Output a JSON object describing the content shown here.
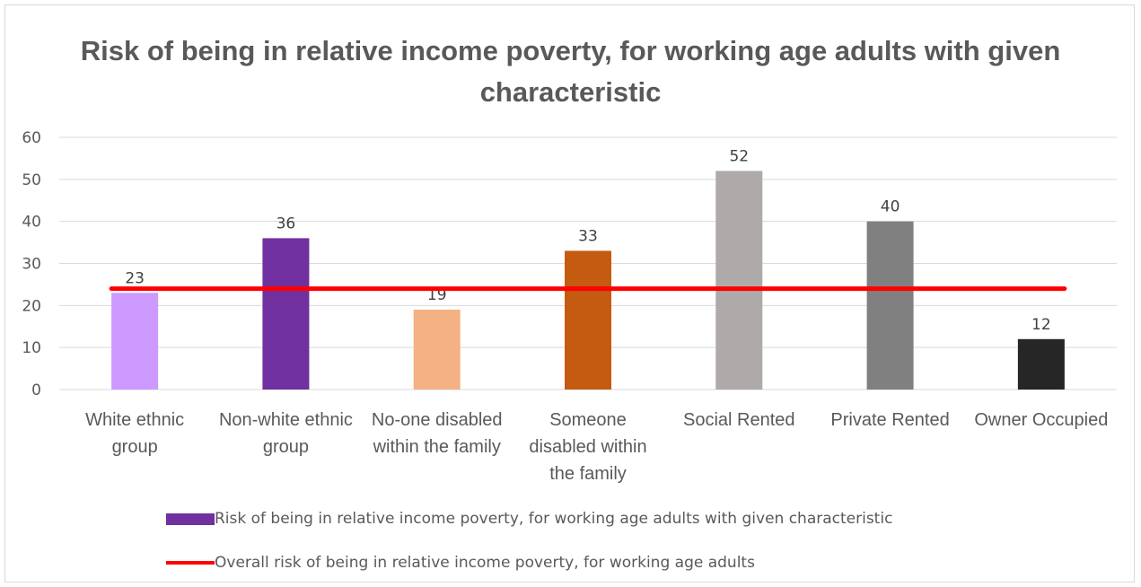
{
  "chart_data": {
    "type": "bar",
    "title": "Risk of being in relative income poverty, for working age adults with given characteristic",
    "categories": [
      [
        "White ethnic",
        "group"
      ],
      [
        "Non-white ethnic",
        "group"
      ],
      [
        "No-one disabled",
        "within the family"
      ],
      [
        "Someone",
        "disabled within",
        "the family"
      ],
      [
        "Social Rented"
      ],
      [
        "Private Rented"
      ],
      [
        "Owner Occupied"
      ]
    ],
    "series": [
      {
        "name": "Risk of being in relative income poverty, for working age adults with given characteristic",
        "type": "bar",
        "values": [
          23,
          36,
          19,
          33,
          52,
          40,
          12
        ],
        "data_labels": [
          "23",
          "36",
          "19",
          "33",
          "52",
          "40",
          "12"
        ],
        "colors": [
          "#cc99ff",
          "#7030a0",
          "#f4b183",
          "#c55a11",
          "#aeaaaa",
          "#808080",
          "#262626"
        ],
        "legend_color": "#7030a0"
      },
      {
        "name": "Overall risk of being in relative income poverty, for working age adults",
        "type": "line",
        "value": 24,
        "color": "#ff0000"
      }
    ],
    "ylim": [
      0,
      60
    ],
    "yticks": [
      0,
      10,
      20,
      30,
      40,
      50,
      60
    ],
    "grid": true,
    "legend_position": "bottom"
  }
}
